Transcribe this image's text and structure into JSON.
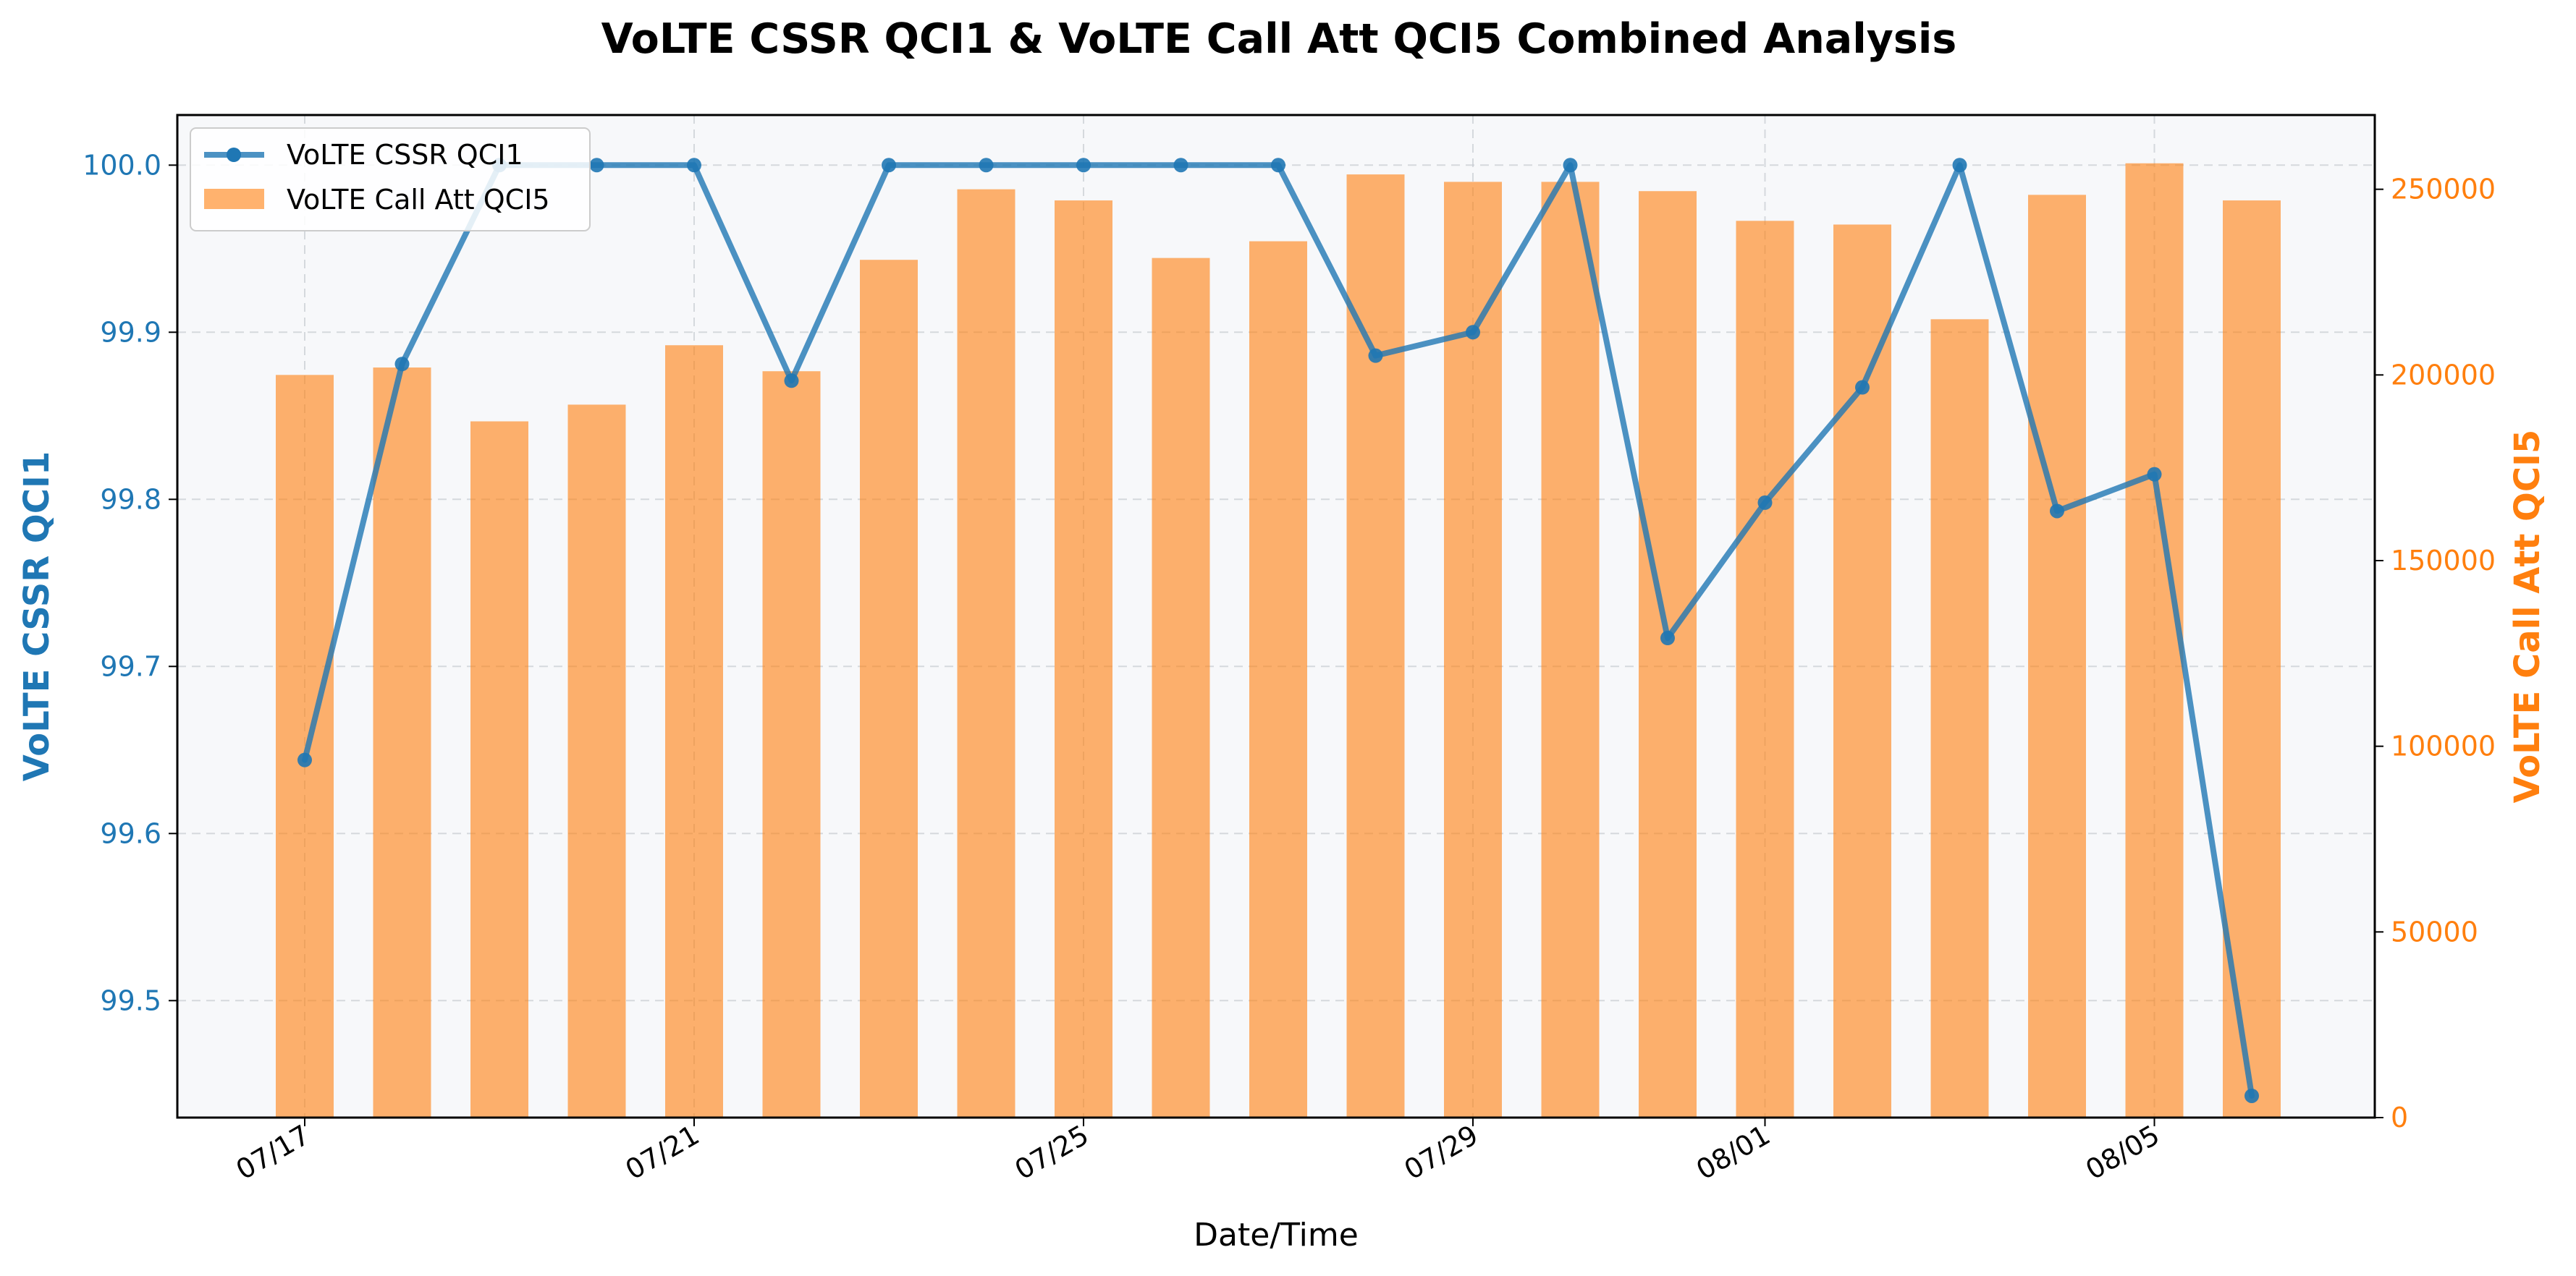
{
  "chart_data": {
    "type": "bar+line",
    "title": "VoLTE CSSR QCI1 & VoLTE Call Att QCI5 Combined Analysis",
    "xlabel": "Date/Time",
    "ylabel_left": "VoLTE CSSR QCI1",
    "ylabel_right": "VoLTE Call Att QCI5",
    "categories": [
      "07/17",
      "07/18",
      "07/19",
      "07/20",
      "07/21",
      "07/22",
      "07/23",
      "07/24",
      "07/25",
      "07/26",
      "07/27",
      "07/28",
      "07/29",
      "07/30",
      "07/31",
      "08/01",
      "08/02",
      "08/03",
      "08/04",
      "08/05",
      "08/06"
    ],
    "x_tick_labels": [
      "07/17",
      "07/21",
      "07/25",
      "07/29",
      "08/01",
      "08/05"
    ],
    "x_tick_index": [
      0,
      4,
      8,
      12,
      15,
      19
    ],
    "y_left": {
      "min": 99.43,
      "max": 100.03,
      "ticks": [
        99.5,
        99.6,
        99.7,
        99.8,
        99.9,
        100.0
      ],
      "tick_labels": [
        "99.5",
        "99.6",
        "99.7",
        "99.8",
        "99.9",
        "100.0"
      ]
    },
    "y_right": {
      "min": 0,
      "max": 270000,
      "ticks": [
        0,
        50000,
        100000,
        150000,
        200000,
        250000
      ],
      "tick_labels": [
        "0",
        "50000",
        "100000",
        "150000",
        "200000",
        "250000"
      ]
    },
    "grid": true,
    "legend_position": "top-left",
    "series": [
      {
        "name": "VoLTE CSSR QCI1",
        "type": "line",
        "axis": "left",
        "color": "#1f77b4",
        "values": [
          99.644,
          99.881,
          100.0,
          100.0,
          100.0,
          99.871,
          100.0,
          100.0,
          100.0,
          100.0,
          100.0,
          99.886,
          99.9,
          100.0,
          99.717,
          99.798,
          99.867,
          100.0,
          99.793,
          99.815,
          99.443
        ]
      },
      {
        "name": "VoLTE Call Att QCI5",
        "type": "bar",
        "axis": "right",
        "color": "#ff7f0e",
        "values": [
          200000,
          202000,
          187500,
          192000,
          208000,
          201000,
          231000,
          250000,
          247000,
          231500,
          236000,
          254000,
          252000,
          252000,
          249500,
          241500,
          240500,
          215000,
          248500,
          257000,
          247000
        ]
      }
    ]
  }
}
